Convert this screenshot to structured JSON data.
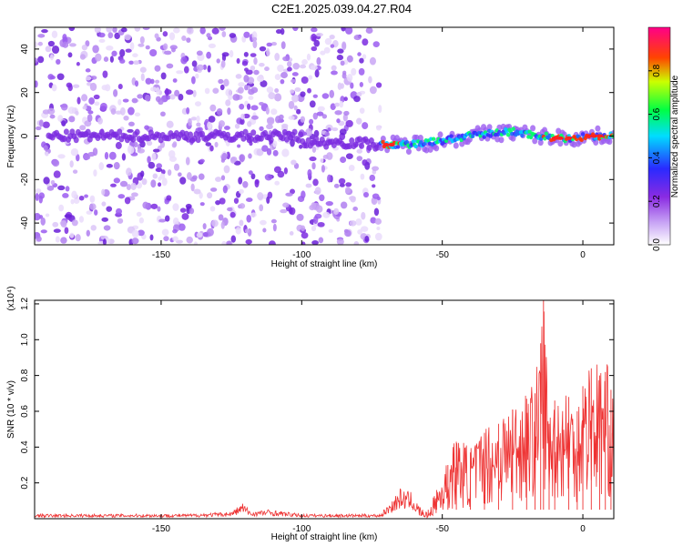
{
  "title": "C2E1.2025.039.04.27.R04",
  "chart_data": [
    {
      "type": "heatmap",
      "xlabel": "Height of straight line (km)",
      "ylabel": "Frequency (Hz)",
      "xlim": [
        -195,
        11
      ],
      "ylim": [
        -50,
        50
      ],
      "xticks": [
        -150,
        -100,
        -50,
        0
      ],
      "yticks": [
        -40,
        -20,
        0,
        20,
        40
      ],
      "colorbar": {
        "label": "Normalized spectral amplitude",
        "range": [
          0,
          1
        ],
        "ticks": [
          "0.0",
          "0.2",
          "0.4",
          "0.6",
          "0.8"
        ],
        "colors": [
          "#ffffff",
          "#8a2be2",
          "#0000ff",
          "#00ffff",
          "#00ff00",
          "#ffff00",
          "#ff0000",
          "#ff00aa"
        ]
      },
      "noise_region": {
        "x": [
          -195,
          -72
        ],
        "y": [
          -50,
          50
        ]
      },
      "signal_trace": {
        "x": [
          -100,
          -90,
          -80,
          -72,
          -65,
          -55,
          -45,
          -35,
          -25,
          -15,
          -5,
          5,
          11
        ],
        "y": [
          -3,
          -3,
          -3,
          -4,
          -4,
          -3,
          -1,
          1,
          2,
          0,
          -1,
          0,
          0
        ]
      }
    },
    {
      "type": "line",
      "xlabel": "Height of straight line (km)",
      "ylabel": "SNR (10 * v/v)",
      "yscale_label": "(x10⁴)",
      "xlim": [
        -195,
        11
      ],
      "ylim": [
        0,
        1.22
      ],
      "xticks": [
        -150,
        -100,
        -50,
        0
      ],
      "yticks": [
        "0.2",
        "0.4",
        "0.6",
        "0.8",
        "1.0",
        "1.2"
      ],
      "series": [
        {
          "color": "#ee3333",
          "x": [
            -195,
            -180,
            -160,
            -140,
            -125,
            -121,
            -118,
            -112,
            -100,
            -90,
            -80,
            -72,
            -68,
            -65,
            -60,
            -57,
            -55,
            -52,
            -48,
            -45,
            -40,
            -35,
            -30,
            -25,
            -20,
            -17,
            -15,
            -14,
            -12,
            -10,
            -5,
            -2,
            0,
            3,
            6,
            8,
            10,
            11
          ],
          "y": [
            0.02,
            0.02,
            0.02,
            0.02,
            0.03,
            0.07,
            0.03,
            0.04,
            0.02,
            0.02,
            0.02,
            0.02,
            0.08,
            0.13,
            0.11,
            0.04,
            0.03,
            0.16,
            0.3,
            0.43,
            0.37,
            0.48,
            0.53,
            0.61,
            0.67,
            0.7,
            0.98,
            1.22,
            0.53,
            0.66,
            0.68,
            0.6,
            0.74,
            0.84,
            0.8,
            0.82,
            0.72,
            0.55
          ]
        }
      ]
    }
  ]
}
